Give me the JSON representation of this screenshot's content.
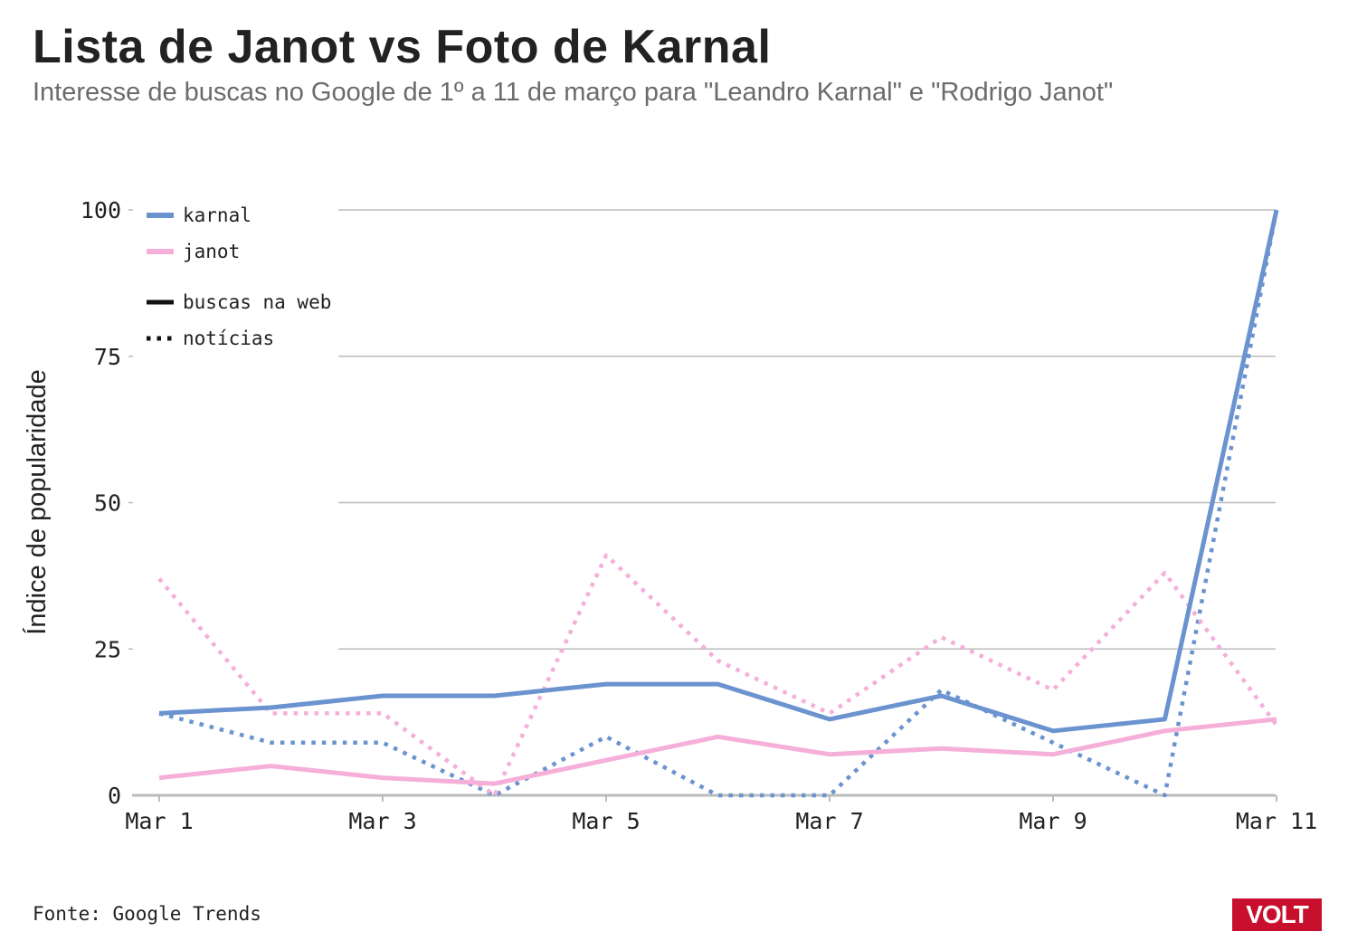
{
  "header": {
    "title": "Lista de Janot vs Foto de Karnal",
    "subtitle": "Interesse de buscas no Google de 1º a 11 de março para \"Leandro Karnal\" e \"Rodrigo Janot\""
  },
  "footer": {
    "source": "Fonte: Google Trends",
    "logo_text": "VOLT"
  },
  "colors": {
    "karnal": "#6a93cf",
    "janot": "#f5afd9",
    "grid": "#bbbbbb",
    "axis": "#bbbbbb",
    "text": "#222222"
  },
  "chart_data": {
    "type": "line",
    "title": "Lista de Janot vs Foto de Karnal",
    "ylabel": "Índice de popularidade",
    "xlabel": "",
    "ylim": [
      0,
      100
    ],
    "yticks": [
      0,
      25,
      50,
      75,
      100
    ],
    "grid": true,
    "legend_position": "top-left",
    "legend": {
      "colors": [
        {
          "label": "karnal",
          "series": "karnal"
        },
        {
          "label": "janot",
          "series": "janot"
        }
      ],
      "styles": [
        {
          "label": "buscas na web",
          "style": "solid"
        },
        {
          "label": "notícias",
          "style": "dotted"
        }
      ]
    },
    "x": [
      "Mar 1",
      "Mar 2",
      "Mar 3",
      "Mar 4",
      "Mar 5",
      "Mar 6",
      "Mar 7",
      "Mar 8",
      "Mar 9",
      "Mar 10",
      "Mar 11"
    ],
    "xtick_labels": [
      "Mar 1",
      "Mar 3",
      "Mar 5",
      "Mar 7",
      "Mar 9",
      "Mar 11"
    ],
    "series": [
      {
        "name": "karnal",
        "kind": "buscas na web",
        "style": "solid",
        "color": "#6a93cf",
        "values": [
          14,
          15,
          17,
          17,
          19,
          19,
          13,
          17,
          11,
          13,
          100
        ]
      },
      {
        "name": "janot",
        "kind": "buscas na web",
        "style": "solid",
        "color": "#f5afd9",
        "values": [
          3,
          5,
          3,
          2,
          6,
          10,
          7,
          8,
          7,
          11,
          13
        ]
      },
      {
        "name": "karnal",
        "kind": "notícias",
        "style": "dotted",
        "color": "#6a93cf",
        "values": [
          14,
          9,
          9,
          0,
          10,
          0,
          0,
          18,
          9,
          0,
          100
        ]
      },
      {
        "name": "janot",
        "kind": "notícias",
        "style": "dotted",
        "color": "#f5afd9",
        "values": [
          37,
          14,
          14,
          0,
          41,
          23,
          14,
          27,
          18,
          38,
          12
        ]
      }
    ]
  }
}
